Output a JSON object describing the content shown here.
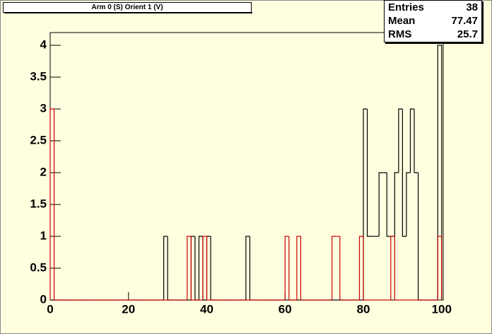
{
  "chart_data": {
    "type": "histogram",
    "title": "Arm 0 (S) Orient 1 (V)",
    "bins": [
      0,
      1,
      2,
      3,
      4,
      5,
      6,
      7,
      8,
      9,
      10,
      11,
      12,
      13,
      14,
      15,
      16,
      17,
      18,
      19,
      20,
      21,
      22,
      23,
      24,
      25,
      26,
      27,
      28,
      29,
      30,
      31,
      32,
      33,
      34,
      35,
      36,
      37,
      38,
      39,
      40,
      41,
      42,
      43,
      44,
      45,
      46,
      47,
      48,
      49,
      50,
      51,
      52,
      53,
      54,
      55,
      56,
      57,
      58,
      59,
      60,
      61,
      62,
      63,
      64,
      65,
      66,
      67,
      68,
      69,
      70,
      71,
      72,
      73,
      74,
      75,
      76,
      77,
      78,
      79,
      80,
      81,
      82,
      83,
      84,
      85,
      86,
      87,
      88,
      89,
      90,
      91,
      92,
      93,
      94,
      95,
      96,
      97,
      98,
      99,
      100
    ],
    "series": [
      {
        "color": "#000000",
        "values": [
          0,
          0,
          0,
          0,
          0,
          0,
          0,
          0,
          0,
          0,
          0,
          0,
          0,
          0,
          0,
          0,
          0,
          0,
          0,
          0,
          0,
          0,
          0,
          0,
          0,
          0,
          0,
          0,
          0,
          1,
          0,
          0,
          0,
          0,
          0,
          0,
          1,
          0,
          1,
          0,
          1,
          0,
          0,
          0,
          0,
          0,
          0,
          0,
          0,
          0,
          1,
          0,
          0,
          0,
          0,
          0,
          0,
          0,
          0,
          0,
          0,
          0,
          0,
          0,
          0,
          0,
          0,
          0,
          0,
          0,
          0,
          0,
          0,
          0,
          0,
          0,
          0,
          0,
          0,
          0,
          3,
          1,
          1,
          1,
          2,
          2,
          1,
          1,
          2,
          3,
          1,
          2,
          3,
          2,
          0,
          0,
          0,
          0,
          0,
          4
        ]
      },
      {
        "color": "#cc0000",
        "values": [
          3,
          0,
          0,
          0,
          0,
          0,
          0,
          0,
          0,
          0,
          0,
          0,
          0,
          0,
          0,
          0,
          0,
          0,
          0,
          0,
          0,
          0,
          0,
          0,
          0,
          0,
          0,
          0,
          0,
          0,
          0,
          0,
          0,
          0,
          0,
          1,
          0,
          0,
          0,
          1,
          0,
          0,
          0,
          0,
          0,
          0,
          0,
          0,
          0,
          0,
          0,
          0,
          0,
          0,
          0,
          0,
          0,
          0,
          0,
          0,
          1,
          0,
          0,
          1,
          0,
          0,
          0,
          0,
          0,
          0,
          0,
          0,
          1,
          1,
          0,
          0,
          0,
          0,
          0,
          1,
          0,
          0,
          0,
          0,
          0,
          0,
          0,
          1,
          0,
          0,
          0,
          0,
          0,
          0,
          0,
          0,
          0,
          0,
          0,
          1
        ]
      }
    ],
    "xlim": [
      0,
      100.4
    ],
    "ylim": [
      0,
      4.2
    ],
    "xticks": [
      0,
      20,
      40,
      60,
      80,
      100
    ],
    "yticks": [
      0,
      0.5,
      1,
      1.5,
      2,
      2.5,
      3,
      3.5,
      4
    ],
    "stats": [
      {
        "label": "Entries",
        "value": "38"
      },
      {
        "label": "Mean",
        "value": "77.47"
      },
      {
        "label": "RMS",
        "value": "25.7"
      }
    ]
  }
}
